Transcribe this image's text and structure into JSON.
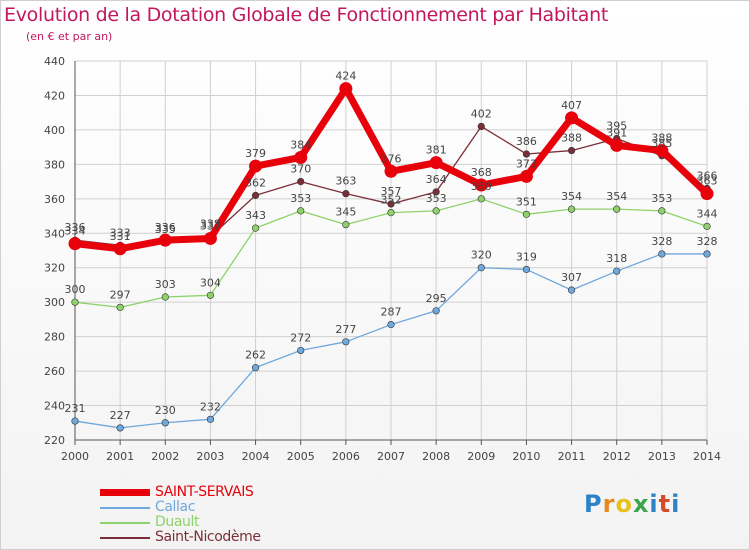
{
  "title": "Evolution de la Dotation Globale de Fonctionnement par Habitant",
  "subtitle": "(en € et par an)",
  "logo": "Proxiti",
  "colors": {
    "title": "#c2185b",
    "grid": "#d0d0d0",
    "axis": "#555555",
    "label": "#444444"
  },
  "chart_data": {
    "type": "line",
    "x": [
      "2000",
      "2001",
      "2002",
      "2003",
      "2004",
      "2005",
      "2006",
      "2007",
      "2008",
      "2009",
      "2010",
      "2011",
      "2012",
      "2013",
      "2014"
    ],
    "ylim": [
      220,
      440
    ],
    "yticks": [
      220,
      240,
      260,
      280,
      300,
      320,
      340,
      360,
      380,
      400,
      420,
      440
    ],
    "grid": true,
    "legend_position": "bottom-left",
    "series": [
      {
        "name": "SAINT-SERVAIS",
        "color": "#e8000b",
        "values": [
          334,
          331,
          336,
          337,
          379,
          384,
          424,
          376,
          381,
          368,
          373,
          407,
          391,
          388,
          363
        ]
      },
      {
        "name": "Callac",
        "color": "#6fa8dc",
        "values": [
          231,
          227,
          230,
          232,
          262,
          272,
          277,
          287,
          295,
          320,
          319,
          307,
          318,
          328,
          328
        ]
      },
      {
        "name": "Duault",
        "color": "#8fd16a",
        "values": [
          300,
          297,
          303,
          304,
          343,
          353,
          345,
          352,
          353,
          360,
          351,
          354,
          354,
          353,
          344
        ]
      },
      {
        "name": "Saint-Nicodème",
        "color": "#7a2f38",
        "values": [
          336,
          333,
          335,
          338,
          362,
          370,
          363,
          357,
          364,
          402,
          386,
          388,
          395,
          385,
          366
        ]
      }
    ]
  }
}
